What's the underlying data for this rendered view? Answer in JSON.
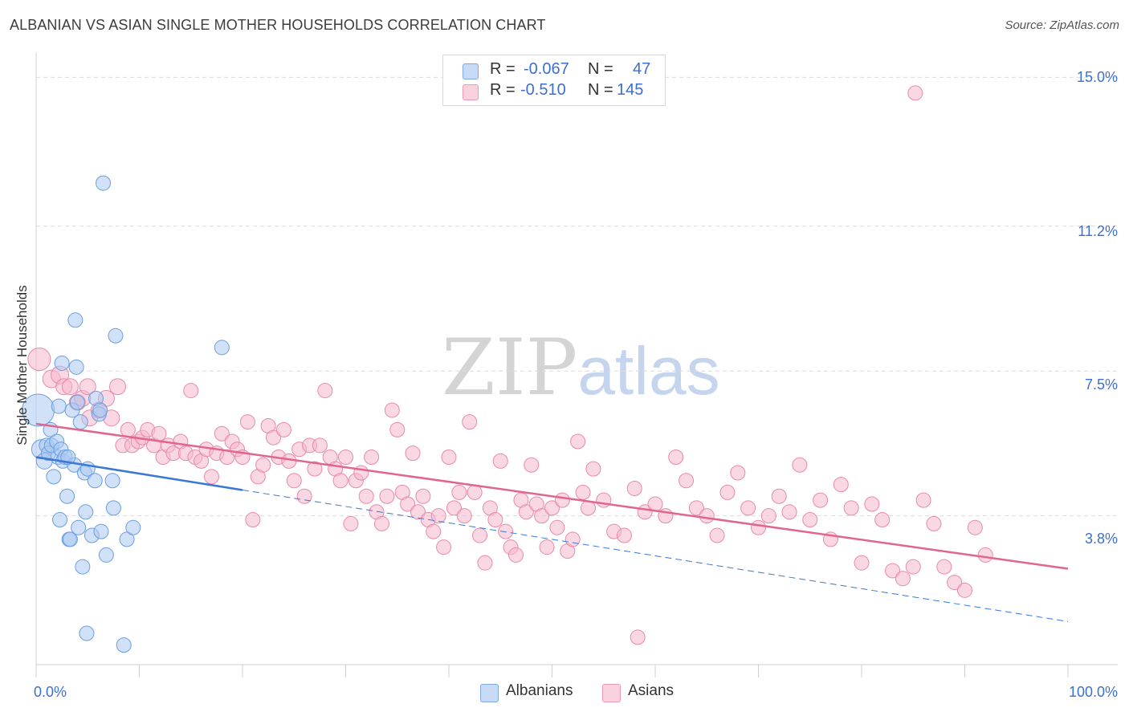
{
  "title": "ALBANIAN VS ASIAN SINGLE MOTHER HOUSEHOLDS CORRELATION CHART",
  "source": "Source: ZipAtlas.com",
  "watermark": {
    "zip": "ZIP",
    "atlas": "atlas"
  },
  "legend": {
    "rows": [
      {
        "r_label": "R =",
        "r_value": "-0.067",
        "n_label": "N =",
        "n_value": "47",
        "color": "#a9c8f2"
      },
      {
        "r_label": "R =",
        "r_value": "-0.510",
        "n_label": "N =",
        "n_value": "145",
        "color": "#f5b8cc"
      }
    ]
  },
  "bottom_legend": [
    {
      "label": "Albanians",
      "color": "#a9c8f2"
    },
    {
      "label": "Asians",
      "color": "#f5b8cc"
    }
  ],
  "colors": {
    "albanian_fill": "#a9c8f2",
    "albanian_stroke": "#6a9ee0",
    "albanian_line": "#3a78d4",
    "asian_fill": "#f5b8cc",
    "asian_stroke": "#e88aaa",
    "asian_line": "#e0668f",
    "grid": "#dcdcdc",
    "axis_text": "#3d6fd1"
  },
  "chart_data": {
    "type": "scatter",
    "title": "ALBANIAN VS ASIAN SINGLE MOTHER HOUSEHOLDS CORRELATION CHART",
    "xlabel": "",
    "ylabel": "Single Mother Households",
    "xlim": [
      0,
      100
    ],
    "ylim": [
      0,
      15.5
    ],
    "x_tick_labels": [
      "0.0%",
      "100.0%"
    ],
    "y_ticks": [
      3.8,
      7.5,
      11.2,
      15.0
    ],
    "y_tick_labels": [
      "3.8%",
      "7.5%",
      "11.2%",
      "15.0%"
    ],
    "grid": true,
    "legend_position": "top-center",
    "series": [
      {
        "name": "Albanians",
        "r": -0.067,
        "n": 47,
        "trend": {
          "x0": 0,
          "y0": 5.3,
          "x1": 100,
          "y1": 1.1,
          "solid_until_x": 20
        },
        "points": [
          [
            0.2,
            6.5,
            20
          ],
          [
            0.5,
            5.5,
            12
          ],
          [
            0.8,
            5.2,
            10
          ],
          [
            1.0,
            5.6,
            9
          ],
          [
            1.2,
            5.4,
            9
          ],
          [
            1.4,
            6.0,
            9
          ],
          [
            1.5,
            5.6,
            9
          ],
          [
            1.7,
            4.8,
            9
          ],
          [
            2.0,
            5.7,
            9
          ],
          [
            2.1,
            5.3,
            9
          ],
          [
            2.2,
            6.6,
            9
          ],
          [
            2.3,
            3.7,
            9
          ],
          [
            2.4,
            5.5,
            9
          ],
          [
            2.5,
            7.7,
            9
          ],
          [
            2.6,
            5.2,
            9
          ],
          [
            2.8,
            5.3,
            9
          ],
          [
            3.0,
            4.3,
            9
          ],
          [
            3.2,
            3.2,
            9
          ],
          [
            3.3,
            3.2,
            9
          ],
          [
            3.5,
            6.5,
            9
          ],
          [
            3.7,
            5.1,
            9
          ],
          [
            3.8,
            8.8,
            9
          ],
          [
            3.9,
            7.6,
            9
          ],
          [
            4.0,
            6.7,
            9
          ],
          [
            4.1,
            3.5,
            9
          ],
          [
            4.3,
            6.2,
            9
          ],
          [
            4.5,
            2.5,
            9
          ],
          [
            4.7,
            4.9,
            9
          ],
          [
            4.8,
            3.9,
            9
          ],
          [
            5.0,
            5.0,
            9
          ],
          [
            4.9,
            0.8,
            9
          ],
          [
            5.4,
            3.3,
            9
          ],
          [
            5.7,
            4.7,
            9
          ],
          [
            5.8,
            6.8,
            9
          ],
          [
            6.1,
            6.4,
            9
          ],
          [
            6.3,
            3.4,
            9
          ],
          [
            6.5,
            12.3,
            9
          ],
          [
            6.8,
            2.8,
            9
          ],
          [
            7.4,
            4.7,
            9
          ],
          [
            7.5,
            4.0,
            9
          ],
          [
            7.7,
            8.4,
            9
          ],
          [
            8.5,
            0.5,
            9
          ],
          [
            8.8,
            3.2,
            9
          ],
          [
            9.4,
            3.5,
            9
          ],
          [
            18.0,
            8.1,
            9
          ],
          [
            6.2,
            6.5,
            9
          ],
          [
            3.1,
            5.3,
            9
          ]
        ]
      },
      {
        "name": "Asians",
        "r": -0.51,
        "n": 145,
        "trend": {
          "x0": 0,
          "y0": 6.15,
          "x1": 100,
          "y1": 2.45
        },
        "points": [
          [
            0.3,
            7.8,
            14
          ],
          [
            1.5,
            7.3,
            11
          ],
          [
            2.3,
            7.4,
            11
          ],
          [
            2.7,
            7.1,
            10
          ],
          [
            3.3,
            7.1,
            10
          ],
          [
            4.0,
            6.7,
            10
          ],
          [
            4.5,
            6.8,
            10
          ],
          [
            5.0,
            7.1,
            10
          ],
          [
            5.2,
            6.3,
            10
          ],
          [
            6.1,
            6.5,
            10
          ],
          [
            6.8,
            6.8,
            10
          ],
          [
            7.3,
            6.3,
            10
          ],
          [
            7.9,
            7.1,
            10
          ],
          [
            8.4,
            5.6,
            9
          ],
          [
            8.9,
            6.0,
            9
          ],
          [
            9.3,
            5.6,
            9
          ],
          [
            9.9,
            5.7,
            9
          ],
          [
            10.3,
            5.8,
            9
          ],
          [
            10.8,
            6.0,
            9
          ],
          [
            11.4,
            5.6,
            9
          ],
          [
            11.9,
            5.9,
            9
          ],
          [
            12.3,
            5.3,
            9
          ],
          [
            12.8,
            5.6,
            9
          ],
          [
            13.3,
            5.4,
            9
          ],
          [
            14.0,
            5.7,
            9
          ],
          [
            14.5,
            5.4,
            9
          ],
          [
            15.0,
            7.0,
            9
          ],
          [
            15.4,
            5.3,
            9
          ],
          [
            16.0,
            5.2,
            9
          ],
          [
            16.5,
            5.5,
            9
          ],
          [
            17.0,
            4.8,
            9
          ],
          [
            17.5,
            5.4,
            9
          ],
          [
            18.0,
            5.9,
            9
          ],
          [
            18.5,
            5.3,
            9
          ],
          [
            19.0,
            5.7,
            9
          ],
          [
            19.5,
            5.5,
            9
          ],
          [
            20.0,
            5.3,
            9
          ],
          [
            20.5,
            6.2,
            9
          ],
          [
            21.0,
            3.7,
            9
          ],
          [
            21.5,
            4.8,
            9
          ],
          [
            22.0,
            5.1,
            9
          ],
          [
            22.5,
            6.1,
            9
          ],
          [
            23.0,
            5.8,
            9
          ],
          [
            23.5,
            5.3,
            9
          ],
          [
            24.0,
            6.0,
            9
          ],
          [
            24.5,
            5.2,
            9
          ],
          [
            25.0,
            4.7,
            9
          ],
          [
            25.5,
            5.5,
            9
          ],
          [
            26.0,
            4.3,
            9
          ],
          [
            26.5,
            5.6,
            9
          ],
          [
            27.0,
            5.0,
            9
          ],
          [
            27.5,
            5.6,
            9
          ],
          [
            28.0,
            7.0,
            9
          ],
          [
            28.5,
            5.3,
            9
          ],
          [
            29.0,
            5.0,
            9
          ],
          [
            29.5,
            4.7,
            9
          ],
          [
            30.0,
            5.3,
            9
          ],
          [
            30.5,
            3.6,
            9
          ],
          [
            31.0,
            4.7,
            9
          ],
          [
            31.5,
            4.9,
            9
          ],
          [
            32.0,
            4.3,
            9
          ],
          [
            32.5,
            5.3,
            9
          ],
          [
            33.0,
            3.9,
            9
          ],
          [
            33.5,
            3.6,
            9
          ],
          [
            34.0,
            4.3,
            9
          ],
          [
            34.5,
            6.5,
            9
          ],
          [
            35.0,
            6.0,
            9
          ],
          [
            35.5,
            4.4,
            9
          ],
          [
            36.0,
            4.1,
            9
          ],
          [
            36.5,
            5.4,
            9
          ],
          [
            37.0,
            3.9,
            9
          ],
          [
            37.5,
            4.3,
            9
          ],
          [
            38.0,
            3.7,
            9
          ],
          [
            38.5,
            3.4,
            9
          ],
          [
            39.0,
            3.8,
            9
          ],
          [
            39.5,
            3.0,
            9
          ],
          [
            40.0,
            5.3,
            9
          ],
          [
            40.5,
            4.0,
            9
          ],
          [
            41.0,
            4.4,
            9
          ],
          [
            41.5,
            3.8,
            9
          ],
          [
            42.0,
            6.2,
            9
          ],
          [
            42.5,
            4.4,
            9
          ],
          [
            43.0,
            3.3,
            9
          ],
          [
            43.5,
            2.6,
            9
          ],
          [
            44.0,
            4.0,
            9
          ],
          [
            44.5,
            3.7,
            9
          ],
          [
            45.0,
            5.2,
            9
          ],
          [
            45.5,
            3.4,
            9
          ],
          [
            46.0,
            3.0,
            9
          ],
          [
            46.5,
            2.8,
            9
          ],
          [
            47.0,
            4.2,
            9
          ],
          [
            47.5,
            3.9,
            9
          ],
          [
            48.0,
            5.1,
            9
          ],
          [
            48.5,
            4.1,
            9
          ],
          [
            49.0,
            3.8,
            9
          ],
          [
            49.5,
            3.0,
            9
          ],
          [
            50.0,
            4.0,
            9
          ],
          [
            50.5,
            3.5,
            9
          ],
          [
            51.0,
            4.2,
            9
          ],
          [
            51.5,
            2.9,
            9
          ],
          [
            52.0,
            3.2,
            9
          ],
          [
            52.5,
            5.7,
            9
          ],
          [
            53.0,
            4.4,
            9
          ],
          [
            53.5,
            4.0,
            9
          ],
          [
            54.0,
            5.0,
            9
          ],
          [
            55.0,
            4.2,
            9
          ],
          [
            56.0,
            3.4,
            9
          ],
          [
            57.0,
            3.3,
            9
          ],
          [
            58.0,
            4.5,
            9
          ],
          [
            59.0,
            3.9,
            9
          ],
          [
            60.0,
            4.1,
            9
          ],
          [
            61.0,
            3.8,
            9
          ],
          [
            62.0,
            5.3,
            9
          ],
          [
            63.0,
            4.7,
            9
          ],
          [
            64.0,
            4.0,
            9
          ],
          [
            65.0,
            3.8,
            9
          ],
          [
            66.0,
            3.3,
            9
          ],
          [
            67.0,
            4.4,
            9
          ],
          [
            68.0,
            4.9,
            9
          ],
          [
            69.0,
            4.0,
            9
          ],
          [
            70.0,
            3.5,
            9
          ],
          [
            71.0,
            3.8,
            9
          ],
          [
            72.0,
            4.3,
            9
          ],
          [
            73.0,
            3.9,
            9
          ],
          [
            74.0,
            5.1,
            9
          ],
          [
            75.0,
            3.7,
            9
          ],
          [
            76.0,
            4.2,
            9
          ],
          [
            77.0,
            3.2,
            9
          ],
          [
            78.0,
            4.6,
            9
          ],
          [
            79.0,
            4.0,
            9
          ],
          [
            80.0,
            2.6,
            9
          ],
          [
            81.0,
            4.1,
            9
          ],
          [
            82.0,
            3.7,
            9
          ],
          [
            83.0,
            2.4,
            9
          ],
          [
            84.0,
            2.2,
            9
          ],
          [
            85.0,
            2.5,
            9
          ],
          [
            86.0,
            4.2,
            9
          ],
          [
            87.0,
            3.6,
            9
          ],
          [
            88.0,
            2.5,
            9
          ],
          [
            89.0,
            2.1,
            9
          ],
          [
            90.0,
            1.9,
            9
          ],
          [
            91.0,
            3.5,
            9
          ],
          [
            92.0,
            2.8,
            9
          ],
          [
            85.2,
            14.6,
            9
          ],
          [
            58.3,
            0.7,
            9
          ]
        ]
      }
    ]
  }
}
